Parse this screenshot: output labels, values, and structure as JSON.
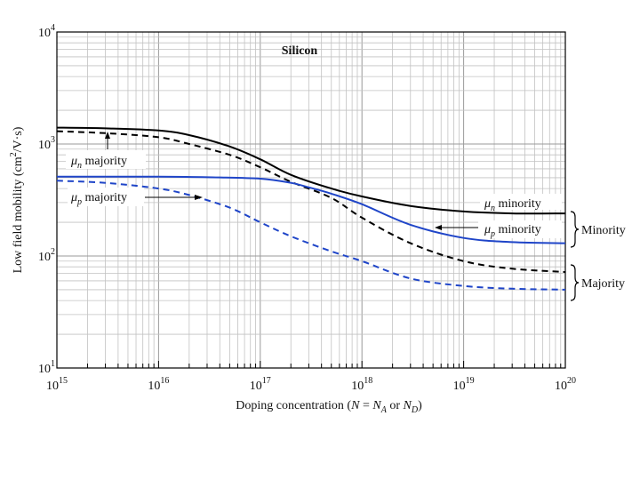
{
  "chart_data": {
    "type": "line",
    "title": "Silicon",
    "x_scale": "log",
    "y_scale": "log",
    "xlim": [
      1000000000000000.0,
      1e+20
    ],
    "ylim": [
      10,
      10000
    ],
    "xlabel": {
      "prefix": "Doping concentration (",
      "N": "N",
      "eq": " = ",
      "NA": "N",
      "NA_sub": "A",
      "or": " or ",
      "ND": "N",
      "ND_sub": "D",
      "suffix": ")"
    },
    "ylabel": {
      "prefix": "Low field mobility (cm",
      "sup": "2",
      "suffix": "/V·s)"
    },
    "x_ticks": [
      {
        "base": "10",
        "exp": "15",
        "value": 1000000000000000.0
      },
      {
        "base": "10",
        "exp": "16",
        "value": 1e+16
      },
      {
        "base": "10",
        "exp": "17",
        "value": 1e+17
      },
      {
        "base": "10",
        "exp": "18",
        "value": 1e+18
      },
      {
        "base": "10",
        "exp": "19",
        "value": 1e+19
      },
      {
        "base": "10",
        "exp": "20",
        "value": 1e+20
      }
    ],
    "y_ticks": [
      {
        "base": "10",
        "exp": "1",
        "value": 10
      },
      {
        "base": "10",
        "exp": "2",
        "value": 100
      },
      {
        "base": "10",
        "exp": "3",
        "value": 1000
      },
      {
        "base": "10",
        "exp": "4",
        "value": 10000
      }
    ],
    "grid": true,
    "series": [
      {
        "name": "μn minority",
        "color": "#000000",
        "dash": "solid",
        "x": [
          1000000000000000.0,
          3000000000000000.0,
          1e+16,
          2e+16,
          5e+16,
          1e+17,
          2e+17,
          5e+17,
          1e+18,
          3e+18,
          1e+19,
          3e+19,
          1e+20
        ],
        "y": [
          1400,
          1380,
          1320,
          1200,
          950,
          730,
          530,
          400,
          340,
          280,
          250,
          240,
          240
        ]
      },
      {
        "name": "μn majority",
        "color": "#000000",
        "dash": "dashed",
        "x": [
          1000000000000000.0,
          3000000000000000.0,
          1e+16,
          2e+16,
          5e+16,
          1e+17,
          2e+17,
          5e+17,
          1e+18,
          3e+18,
          1e+19,
          3e+19,
          1e+20
        ],
        "y": [
          1300,
          1250,
          1150,
          1000,
          800,
          620,
          460,
          330,
          220,
          130,
          90,
          77,
          72
        ]
      },
      {
        "name": "μp minority",
        "color": "#1f45c8",
        "dash": "solid",
        "x": [
          1000000000000000.0,
          3000000000000000.0,
          1e+16,
          3e+16,
          1e+17,
          2e+17,
          3e+17,
          5e+17,
          1e+18,
          3e+18,
          1e+19,
          3e+19,
          1e+20
        ],
        "y": [
          510,
          510,
          510,
          505,
          490,
          450,
          410,
          360,
          290,
          190,
          145,
          133,
          130
        ]
      },
      {
        "name": "μp majority",
        "color": "#1f45c8",
        "dash": "dashed",
        "x": [
          1000000000000000.0,
          3000000000000000.0,
          1e+16,
          2e+16,
          5e+16,
          1e+17,
          2e+17,
          5e+17,
          1e+18,
          3e+18,
          1e+19,
          3e+19,
          1e+20
        ],
        "y": [
          470,
          450,
          400,
          350,
          270,
          200,
          150,
          110,
          90,
          63,
          54,
          51,
          50
        ]
      }
    ],
    "annotations": {
      "mu_n_majority": {
        "mu": "μ",
        "sub": "n",
        "text": " majority"
      },
      "mu_p_majority": {
        "mu": "μ",
        "sub": "p",
        "text": " majority"
      },
      "mu_n_minority": {
        "mu": "μ",
        "sub": "n",
        "text": " minority"
      },
      "mu_p_minority": {
        "mu": "μ",
        "sub": "p",
        "text": " minority"
      },
      "minority_group": "Minority",
      "majority_group": "Majority"
    }
  }
}
